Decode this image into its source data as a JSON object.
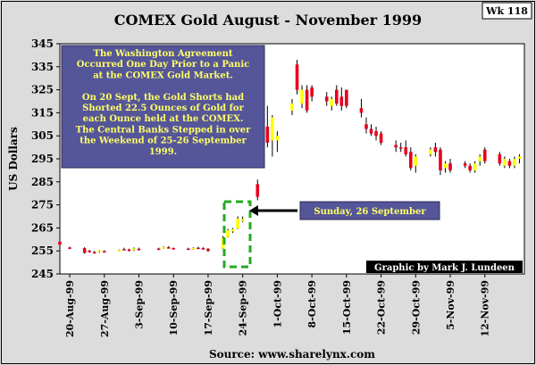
{
  "chart_data": {
    "type": "candlestick",
    "title": "COMEX Gold  August - November 1999",
    "badge": "Wk 118",
    "ylabel": "US Dollars",
    "ylim": [
      245,
      345
    ],
    "yticks": [
      245,
      255,
      265,
      275,
      285,
      295,
      305,
      315,
      325,
      335,
      345
    ],
    "xlim": [
      "1999-08-18",
      "1999-11-20"
    ],
    "xticks": [
      {
        "date": "1999-08-20",
        "label": "20-Aug-99"
      },
      {
        "date": "1999-08-27",
        "label": "27-Aug-99"
      },
      {
        "date": "1999-09-03",
        "label": "3-Sep-99"
      },
      {
        "date": "1999-09-10",
        "label": "10-Sep-99"
      },
      {
        "date": "1999-09-17",
        "label": "17-Sep-99"
      },
      {
        "date": "1999-09-24",
        "label": "24-Sep-99"
      },
      {
        "date": "1999-10-01",
        "label": "1-Oct-99"
      },
      {
        "date": "1999-10-08",
        "label": "8-Oct-99"
      },
      {
        "date": "1999-10-15",
        "label": "15-Oct-99"
      },
      {
        "date": "1999-10-22",
        "label": "22-Oct-99"
      },
      {
        "date": "1999-10-29",
        "label": "29-Oct-99"
      },
      {
        "date": "1999-11-05",
        "label": "5-Nov-99"
      },
      {
        "date": "1999-11-12",
        "label": "12-Nov-99"
      }
    ],
    "colors": {
      "up": "#ffff00",
      "down": "#e8001c",
      "annotation_bg": "#55559a",
      "annotation_text": "#ffff66",
      "dashed_box": "#22aa22",
      "credit_bg": "#000000",
      "plot_bg": "#ffffff"
    },
    "candles": [
      {
        "date": "1999-08-18",
        "open": 259.0,
        "high": 259.8,
        "low": 257.5,
        "close": 257.8
      },
      {
        "date": "1999-08-20",
        "open": 256.5,
        "high": 256.8,
        "low": 255.8,
        "close": 256.2
      },
      {
        "date": "1999-08-23",
        "open": 256.2,
        "high": 256.6,
        "low": 253.8,
        "close": 254.2
      },
      {
        "date": "1999-08-24",
        "open": 255.0,
        "high": 255.5,
        "low": 254.4,
        "close": 254.8
      },
      {
        "date": "1999-08-25",
        "open": 254.5,
        "high": 255.0,
        "low": 253.8,
        "close": 254.1
      },
      {
        "date": "1999-08-26",
        "open": 254.6,
        "high": 255.4,
        "low": 254.2,
        "close": 255.2
      },
      {
        "date": "1999-08-27",
        "open": 254.9,
        "high": 255.3,
        "low": 254.3,
        "close": 254.6
      },
      {
        "date": "1999-08-30",
        "open": 255.2,
        "high": 255.6,
        "low": 254.8,
        "close": 255.4
      },
      {
        "date": "1999-08-31",
        "open": 255.8,
        "high": 256.4,
        "low": 255.3,
        "close": 255.6
      },
      {
        "date": "1999-09-01",
        "open": 255.6,
        "high": 256.0,
        "low": 254.8,
        "close": 255.2
      },
      {
        "date": "1999-09-02",
        "open": 255.4,
        "high": 256.5,
        "low": 255.0,
        "close": 256.1
      },
      {
        "date": "1999-09-03",
        "open": 255.9,
        "high": 256.4,
        "low": 255.2,
        "close": 255.4
      },
      {
        "date": "1999-09-07",
        "open": 256.0,
        "high": 256.4,
        "low": 255.4,
        "close": 255.8
      },
      {
        "date": "1999-09-08",
        "open": 256.4,
        "high": 256.9,
        "low": 255.9,
        "close": 256.6
      },
      {
        "date": "1999-09-09",
        "open": 256.6,
        "high": 257.1,
        "low": 256.0,
        "close": 256.2
      },
      {
        "date": "1999-09-10",
        "open": 256.2,
        "high": 256.5,
        "low": 255.6,
        "close": 255.9
      },
      {
        "date": "1999-09-13",
        "open": 256.0,
        "high": 256.4,
        "low": 255.5,
        "close": 255.8
      },
      {
        "date": "1999-09-14",
        "open": 255.8,
        "high": 256.6,
        "low": 255.5,
        "close": 256.3
      },
      {
        "date": "1999-09-15",
        "open": 256.4,
        "high": 256.8,
        "low": 255.8,
        "close": 256.0
      },
      {
        "date": "1999-09-16",
        "open": 256.2,
        "high": 256.6,
        "low": 255.5,
        "close": 255.8
      },
      {
        "date": "1999-09-17",
        "open": 255.9,
        "high": 256.3,
        "low": 254.6,
        "close": 255.0
      },
      {
        "date": "1999-09-20",
        "open": 256.0,
        "high": 261.5,
        "low": 255.8,
        "close": 260.5
      },
      {
        "date": "1999-09-21",
        "open": 261.0,
        "high": 264.6,
        "low": 260.8,
        "close": 264.0
      },
      {
        "date": "1999-09-22",
        "open": 263.5,
        "high": 265.0,
        "low": 262.8,
        "close": 264.5
      },
      {
        "date": "1999-09-23",
        "open": 264.8,
        "high": 270.0,
        "low": 264.5,
        "close": 269.0
      },
      {
        "date": "1999-09-24",
        "open": 268.0,
        "high": 270.0,
        "low": 267.5,
        "close": 268.8
      },
      {
        "date": "1999-09-27",
        "open": 284.0,
        "high": 286.0,
        "low": 277.0,
        "close": 278.5
      },
      {
        "date": "1999-09-28",
        "open": 295.0,
        "high": 321.0,
        "low": 294.0,
        "close": 310.0
      },
      {
        "date": "1999-09-29",
        "open": 309.0,
        "high": 318.0,
        "low": 300.0,
        "close": 302.0
      },
      {
        "date": "1999-09-30",
        "open": 303.0,
        "high": 314.0,
        "low": 296.0,
        "close": 313.0
      },
      {
        "date": "1999-10-01",
        "open": 303.0,
        "high": 307.0,
        "low": 298.0,
        "close": 305.0
      },
      {
        "date": "1999-10-04",
        "open": 316.0,
        "high": 321.0,
        "low": 314.0,
        "close": 319.0
      },
      {
        "date": "1999-10-05",
        "open": 336.0,
        "high": 338.0,
        "low": 323.0,
        "close": 325.0
      },
      {
        "date": "1999-10-06",
        "open": 319.0,
        "high": 327.0,
        "low": 317.0,
        "close": 325.0
      },
      {
        "date": "1999-10-07",
        "open": 325.0,
        "high": 327.0,
        "low": 315.0,
        "close": 316.0
      },
      {
        "date": "1999-10-08",
        "open": 326.0,
        "high": 327.0,
        "low": 320.0,
        "close": 322.0
      },
      {
        "date": "1999-10-11",
        "open": 322.0,
        "high": 324.0,
        "low": 318.0,
        "close": 320.0
      },
      {
        "date": "1999-10-12",
        "open": 318.0,
        "high": 322.0,
        "low": 316.0,
        "close": 321.0
      },
      {
        "date": "1999-10-13",
        "open": 325.0,
        "high": 327.0,
        "low": 318.0,
        "close": 319.0
      },
      {
        "date": "1999-10-14",
        "open": 322.0,
        "high": 326.0,
        "low": 316.0,
        "close": 318.0
      },
      {
        "date": "1999-10-15",
        "open": 325.0,
        "high": 325.0,
        "low": 317.0,
        "close": 318.0
      },
      {
        "date": "1999-10-18",
        "open": 317.0,
        "high": 321.0,
        "low": 313.0,
        "close": 315.0
      },
      {
        "date": "1999-10-19",
        "open": 310.0,
        "high": 313.0,
        "low": 306.0,
        "close": 308.0
      },
      {
        "date": "1999-10-20",
        "open": 308.0,
        "high": 310.0,
        "low": 305.0,
        "close": 306.0
      },
      {
        "date": "1999-10-21",
        "open": 307.0,
        "high": 309.0,
        "low": 303.0,
        "close": 305.0
      },
      {
        "date": "1999-10-22",
        "open": 306.0,
        "high": 307.0,
        "low": 301.0,
        "close": 302.0
      },
      {
        "date": "1999-10-25",
        "open": 301.0,
        "high": 303.0,
        "low": 298.0,
        "close": 300.0
      },
      {
        "date": "1999-10-26",
        "open": 300.0,
        "high": 302.0,
        "low": 298.0,
        "close": 299.5
      },
      {
        "date": "1999-10-27",
        "open": 300.0,
        "high": 303.0,
        "low": 296.0,
        "close": 297.0
      },
      {
        "date": "1999-10-28",
        "open": 298.0,
        "high": 300.0,
        "low": 290.0,
        "close": 291.0
      },
      {
        "date": "1999-10-29",
        "open": 292.0,
        "high": 297.0,
        "low": 289.0,
        "close": 296.0
      },
      {
        "date": "1999-11-01",
        "open": 297.0,
        "high": 300.0,
        "low": 296.0,
        "close": 299.0
      },
      {
        "date": "1999-11-02",
        "open": 300.0,
        "high": 302.0,
        "low": 296.0,
        "close": 298.0
      },
      {
        "date": "1999-11-03",
        "open": 299.0,
        "high": 300.0,
        "low": 288.0,
        "close": 290.0
      },
      {
        "date": "1999-11-04",
        "open": 291.0,
        "high": 294.0,
        "low": 289.0,
        "close": 293.0
      },
      {
        "date": "1999-11-05",
        "open": 293.0,
        "high": 295.0,
        "low": 289.0,
        "close": 290.0
      },
      {
        "date": "1999-11-08",
        "open": 293.0,
        "high": 294.0,
        "low": 291.0,
        "close": 292.0
      },
      {
        "date": "1999-11-09",
        "open": 292.0,
        "high": 293.0,
        "low": 289.0,
        "close": 290.0
      },
      {
        "date": "1999-11-10",
        "open": 290.0,
        "high": 294.0,
        "low": 289.0,
        "close": 293.0
      },
      {
        "date": "1999-11-11",
        "open": 294.0,
        "high": 297.0,
        "low": 292.0,
        "close": 296.0
      },
      {
        "date": "1999-11-12",
        "open": 299.0,
        "high": 300.0,
        "low": 293.0,
        "close": 294.0
      },
      {
        "date": "1999-11-15",
        "open": 297.0,
        "high": 298.0,
        "low": 292.0,
        "close": 293.0
      },
      {
        "date": "1999-11-16",
        "open": 292.0,
        "high": 296.0,
        "low": 291.0,
        "close": 295.0
      },
      {
        "date": "1999-11-17",
        "open": 294.0,
        "high": 295.0,
        "low": 291.0,
        "close": 292.0
      },
      {
        "date": "1999-11-18",
        "open": 292.0,
        "high": 296.0,
        "low": 291.0,
        "close": 295.0
      },
      {
        "date": "1999-11-19",
        "open": 295.0,
        "high": 297.0,
        "low": 293.0,
        "close": 296.0
      }
    ],
    "annotations": {
      "main_note": [
        "The Washington Agreement",
        "Occurred One Day Prior to a Panic",
        "at the COMEX Gold Market.",
        "",
        "On 20 Sept, the Gold Shorts had",
        "Shorted 22.5 Ounces of Gold for",
        "each Ounce held at the COMEX.",
        "The Central Banks Stepped in over",
        "the Weekend of 25-26 September",
        "1999."
      ],
      "sunday_label": "Sunday, 26 September",
      "credit": "Graphic by Mark J. Lundeen",
      "source": "Source: www.sharelynx.com"
    },
    "grid": false,
    "legend": "none"
  }
}
